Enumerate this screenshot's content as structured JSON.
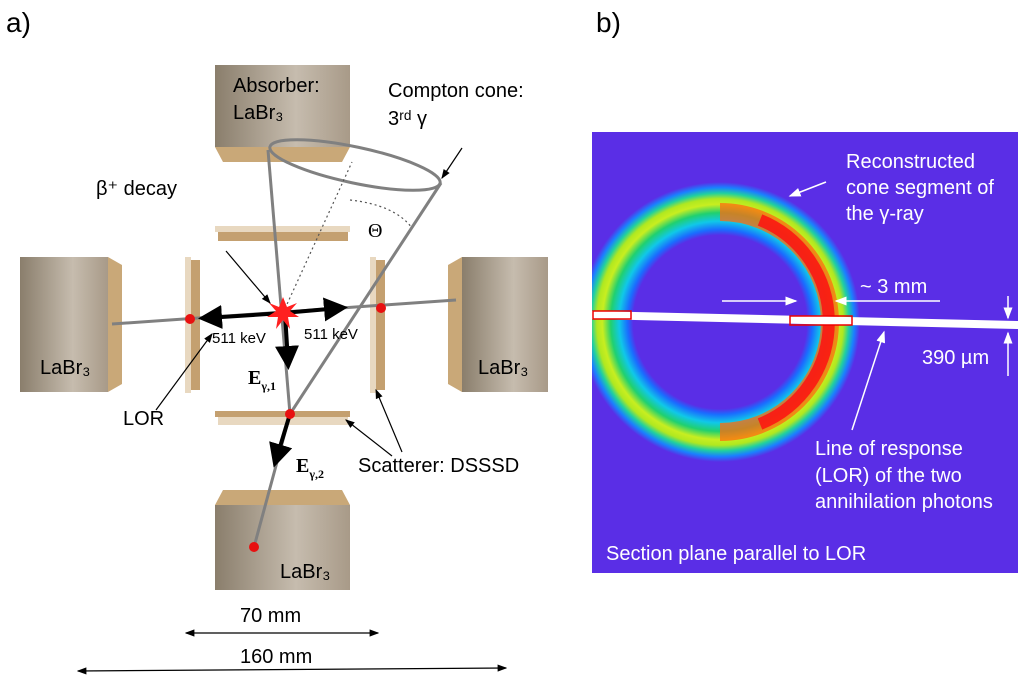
{
  "panel_a": {
    "label": "a)",
    "absorber_title": "Absorber:",
    "absorber_top": "LaBr₃",
    "absorber_left": "LaBr₃",
    "absorber_right": "LaBr₃",
    "absorber_bottom": "LaBr₃",
    "cone_title": "Compton cone:",
    "cone_gamma": "3ʳᵈ γ",
    "decay": "β⁺ decay",
    "theta": "Θ",
    "energy_left": "511 keV",
    "energy_right": "511 keV",
    "e_gamma_1": {
      "base": "E",
      "sub": "γ,1"
    },
    "e_gamma_2": {
      "base": "E",
      "sub": "γ,2"
    },
    "lor": "LOR",
    "scatterer": "Scatterer: DSSSD",
    "dim_inner": "70 mm",
    "dim_outer": "160 mm"
  },
  "panel_b": {
    "label": "b)",
    "cone_note": [
      "Reconstructed",
      "cone segment of",
      "the γ-ray"
    ],
    "width_note": "~ 3 mm",
    "thickness_note": "390 µm",
    "lor_note": [
      "Line of response",
      "(LOR) of the two",
      "annihilation photons"
    ],
    "section_note": "Section plane parallel to LOR"
  }
}
